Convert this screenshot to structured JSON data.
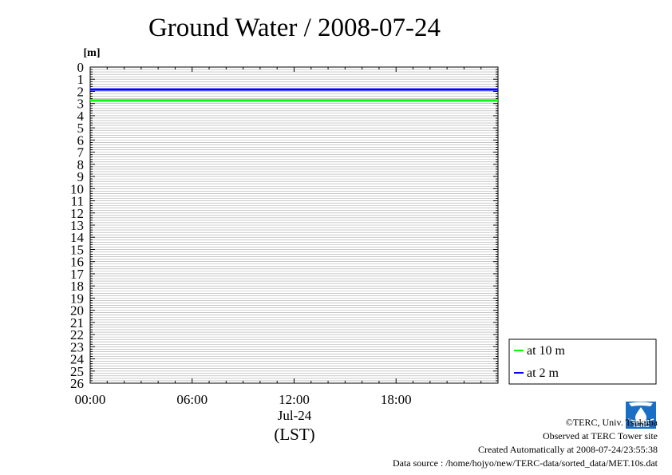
{
  "chart_data": {
    "type": "line",
    "title": "Ground Water / 2008-07-24",
    "unit_label": "[m]",
    "xlabel_date": "Jul-24",
    "xlabel": "(LST)",
    "x_ticks": [
      "00:00",
      "06:00",
      "12:00",
      "18:00"
    ],
    "x_tick_hours": [
      0,
      6,
      12,
      18
    ],
    "xlim_hours": [
      0,
      24
    ],
    "y_ticks": [
      "0",
      "1",
      "2",
      "3",
      "4",
      "5",
      "6",
      "7",
      "8",
      "9",
      "10",
      "11",
      "12",
      "13",
      "14",
      "15",
      "16",
      "17",
      "18",
      "19",
      "20",
      "21",
      "22",
      "23",
      "24",
      "25",
      "26"
    ],
    "ylim": [
      0,
      26
    ],
    "y_inverted": true,
    "grid": true,
    "legend_position": "right-bottom",
    "series": [
      {
        "name": "at 10 m",
        "color": "#00ff00",
        "x_hours": [
          0,
          24
        ],
        "values": [
          2.75,
          2.75
        ]
      },
      {
        "name": "at 2 m",
        "color": "#0000ff",
        "x_hours": [
          0,
          24
        ],
        "values": [
          1.85,
          1.85
        ]
      }
    ]
  },
  "footer": {
    "copyright": "©TERC, Univ. Tsukuba",
    "observed": "Observed at TERC Tower site",
    "created": "Created Automatically at 2008-07-24/23:55:38",
    "source": "Data source : /home/hojyo/new/TERC-data/sorted_data/MET.10s.dat"
  },
  "logo": {
    "text": "TERC",
    "color": "#1a6fc4"
  }
}
